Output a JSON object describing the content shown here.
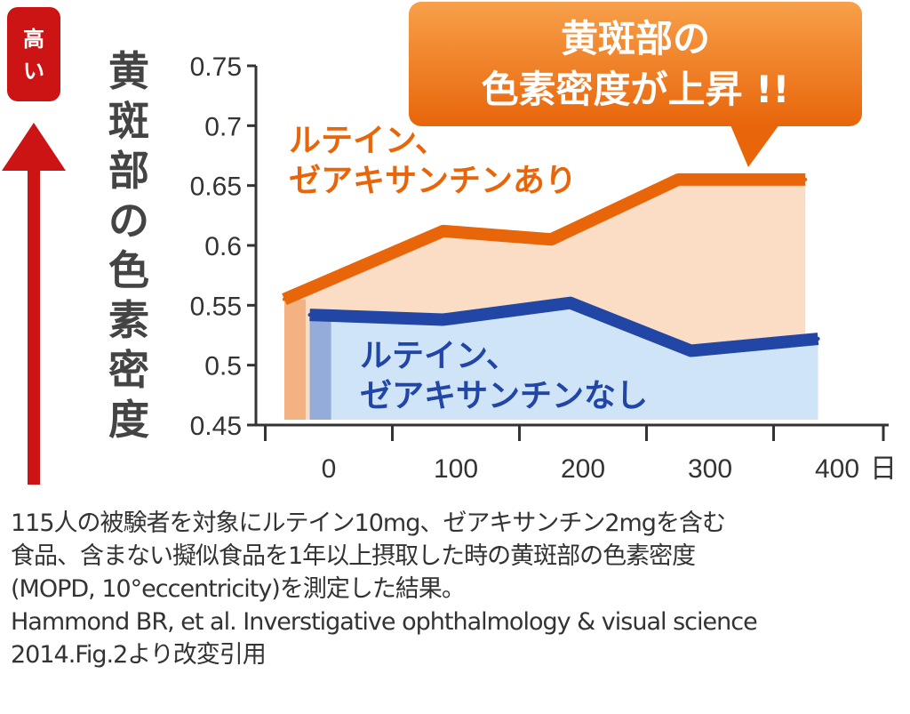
{
  "chart_data": {
    "type": "area",
    "title": "",
    "ylabel": "黄斑部の色素密度",
    "xlabel": "日",
    "x_unit": "日",
    "y_direction_label": "高い",
    "ylim": [
      0.45,
      0.75
    ],
    "yticks": [
      "0.75",
      "0.7",
      "0.65",
      "0.6",
      "0.55",
      "0.5",
      "0.45"
    ],
    "yticks_values": [
      0.75,
      0.7,
      0.65,
      0.6,
      0.55,
      0.5,
      0.45
    ],
    "xticks": [
      "0",
      "100",
      "200",
      "300",
      "400"
    ],
    "xticks_values": [
      0,
      100,
      200,
      300,
      400
    ],
    "series": [
      {
        "name": "ルテイン、ゼアキサンチンあり",
        "label_lines": [
          "ルテイン、",
          "ゼアキサンチンあり"
        ],
        "color": "#e8650a",
        "fill": "#fbdcc4",
        "x": [
          -35,
          90,
          175,
          275,
          375
        ],
        "y": [
          0.555,
          0.612,
          0.605,
          0.655,
          0.655
        ]
      },
      {
        "name": "ルテイン、ゼアキサンチンなし",
        "label_lines": [
          "ルテイン、",
          "ゼアキサンチンなし"
        ],
        "color": "#2146a6",
        "fill": "#cfe4f6",
        "x": [
          -15,
          90,
          190,
          285,
          385
        ],
        "y": [
          0.542,
          0.538,
          0.552,
          0.512,
          0.522
        ]
      }
    ],
    "callout": {
      "lines": [
        "黄斑部の",
        "色素密度が上昇 !!"
      ],
      "color": "#ee7d1e"
    }
  },
  "caption": {
    "lines": [
      "115人の被験者を対象にルテイン10mg、ゼアキサンチン2mgを含む",
      "食品、含まない擬似食品を1年以上摂取した時の黄斑部の色素密度",
      "(MOPD, 10°eccentricity)を測定した結果。",
      "Hammond BR, et al. Inverstigative ophthalmology & visual science",
      "2014.Fig.2より改変引用"
    ]
  }
}
